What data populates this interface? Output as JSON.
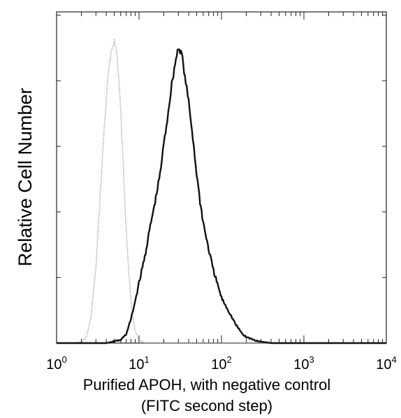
{
  "chart_data": {
    "type": "line",
    "title": "",
    "xlabel": "Purified APOH, with negative control",
    "xlabel_line2": "(FITC second step)",
    "ylabel": "Relative Cell Number",
    "x_scale": "log",
    "xlim": [
      1,
      10000
    ],
    "x_ticks": [
      {
        "base": "10",
        "exp": "0"
      },
      {
        "base": "10",
        "exp": "1"
      },
      {
        "base": "10",
        "exp": "2"
      },
      {
        "base": "10",
        "exp": "3"
      },
      {
        "base": "10",
        "exp": "4"
      }
    ],
    "ylim": [
      0,
      100
    ],
    "y_tick_count": 5,
    "grid": false,
    "legend": "none",
    "series": [
      {
        "style": "dotted-light",
        "color": "#9a9a9a",
        "x": [
          1.0,
          1.6,
          2.0,
          2.3,
          2.6,
          3.0,
          3.4,
          3.8,
          4.2,
          4.6,
          5.0,
          5.4,
          5.8,
          6.3,
          6.8,
          7.5,
          8.2,
          9.0,
          10.0,
          12,
          20,
          100,
          10000
        ],
        "y": [
          0,
          0,
          0.5,
          2,
          8,
          25,
          50,
          72,
          88,
          97,
          100,
          96,
          84,
          64,
          44,
          24,
          10,
          4,
          1,
          0,
          0,
          0,
          0
        ]
      },
      {
        "style": "solid-dark",
        "color": "#111111",
        "x": [
          1.0,
          4.0,
          6.0,
          7.0,
          8.0,
          9.0,
          10,
          11,
          12,
          14,
          16,
          18,
          20,
          22,
          25,
          28,
          30,
          33,
          36,
          40,
          45,
          50,
          55,
          60,
          70,
          80,
          100,
          120,
          150,
          180,
          200,
          250,
          300,
          400,
          10000
        ],
        "y": [
          0,
          0,
          1,
          3,
          8,
          14,
          20,
          25,
          30,
          40,
          48,
          56,
          66,
          74,
          86,
          94,
          98,
          96,
          88,
          80,
          68,
          56,
          47,
          40,
          31,
          24,
          15,
          11,
          6,
          3,
          2,
          1,
          0.5,
          0,
          0
        ]
      }
    ]
  }
}
